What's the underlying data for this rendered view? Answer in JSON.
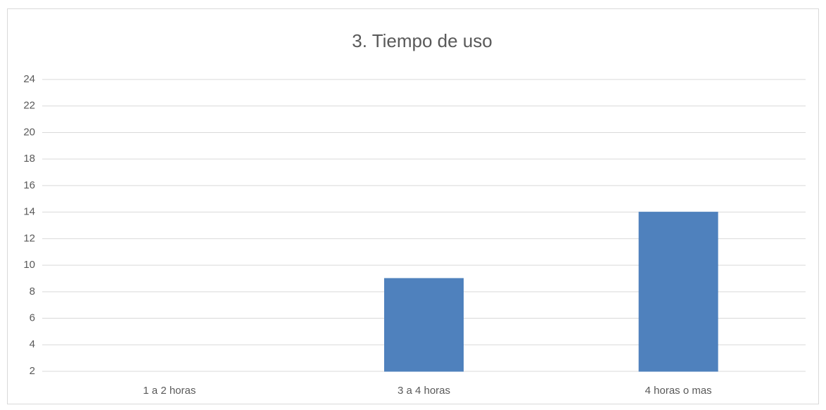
{
  "chart_data": {
    "type": "bar",
    "title": "3. Tiempo de uso",
    "categories": [
      "1 a 2 horas",
      "3 a 4 horas",
      "4 horas o mas"
    ],
    "values": [
      2,
      9,
      14
    ],
    "color": "#4f81bd",
    "ylim": [
      2,
      24
    ],
    "yticks": [
      2,
      4,
      6,
      8,
      10,
      12,
      14,
      16,
      18,
      20,
      22,
      24
    ],
    "grid": true
  }
}
